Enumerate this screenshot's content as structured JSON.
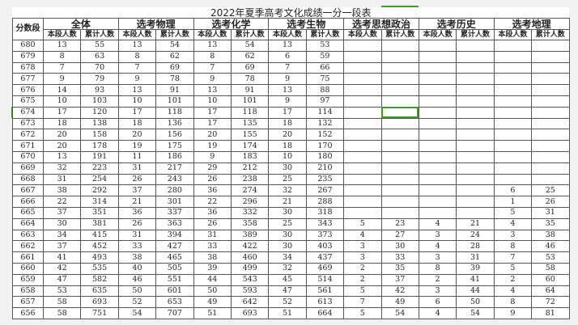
{
  "title": "2022年夏季高考文化成绩一分一段表",
  "score_header": "分数段",
  "groups": [
    "全体",
    "选考物理",
    "选考化学",
    "选考生物",
    "选考思想政治",
    "选考历史",
    "选考地理"
  ],
  "sub_headers": {
    "segment": "本段人数",
    "cumulative": "累计人数"
  },
  "selected_cell": {
    "row": "674",
    "column": "选考思想政治 累计人数"
  },
  "accent_color": "#3f9a2a",
  "rows": [
    [
      "680",
      "13",
      "55",
      "13",
      "54",
      "13",
      "54",
      "13",
      "53",
      "",
      "",
      "",
      "",
      "",
      ""
    ],
    [
      "679",
      "8",
      "63",
      "8",
      "62",
      "8",
      "62",
      "6",
      "59",
      "",
      "",
      "",
      "",
      "",
      ""
    ],
    [
      "678",
      "7",
      "70",
      "7",
      "69",
      "7",
      "69",
      "7",
      "66",
      "",
      "",
      "",
      "",
      "",
      ""
    ],
    [
      "677",
      "9",
      "79",
      "9",
      "78",
      "9",
      "78",
      "9",
      "75",
      "",
      "",
      "",
      "",
      "",
      ""
    ],
    [
      "676",
      "14",
      "93",
      "13",
      "91",
      "13",
      "91",
      "13",
      "88",
      "",
      "",
      "",
      "",
      "",
      ""
    ],
    [
      "675",
      "10",
      "103",
      "10",
      "101",
      "10",
      "101",
      "9",
      "97",
      "",
      "",
      "",
      "",
      "",
      ""
    ],
    [
      "674",
      "17",
      "120",
      "17",
      "118",
      "17",
      "118",
      "17",
      "114",
      "",
      "",
      "",
      "",
      "",
      ""
    ],
    [
      "673",
      "18",
      "138",
      "18",
      "136",
      "17",
      "135",
      "18",
      "132",
      "",
      "",
      "",
      "",
      "",
      ""
    ],
    [
      "672",
      "20",
      "158",
      "20",
      "156",
      "20",
      "155",
      "20",
      "152",
      "",
      "",
      "",
      "",
      "",
      ""
    ],
    [
      "671",
      "20",
      "178",
      "19",
      "175",
      "19",
      "174",
      "18",
      "170",
      "",
      "",
      "",
      "",
      "",
      ""
    ],
    [
      "670",
      "13",
      "191",
      "11",
      "186",
      "9",
      "183",
      "10",
      "180",
      "",
      "",
      "",
      "",
      "",
      ""
    ],
    [
      "669",
      "32",
      "223",
      "31",
      "217",
      "29",
      "212",
      "30",
      "210",
      "",
      "",
      "",
      "",
      "",
      ""
    ],
    [
      "668",
      "31",
      "254",
      "26",
      "243",
      "26",
      "238",
      "25",
      "235",
      "",
      "",
      "",
      "",
      "",
      ""
    ],
    [
      "667",
      "38",
      "292",
      "37",
      "280",
      "36",
      "274",
      "32",
      "267",
      "",
      "",
      "",
      "",
      "6",
      "25"
    ],
    [
      "666",
      "22",
      "314",
      "21",
      "301",
      "22",
      "296",
      "21",
      "288",
      "",
      "",
      "",
      "",
      "1",
      "26"
    ],
    [
      "665",
      "37",
      "351",
      "36",
      "337",
      "36",
      "332",
      "30",
      "318",
      "",
      "",
      "",
      "",
      "5",
      "31"
    ],
    [
      "664",
      "30",
      "381",
      "26",
      "363",
      "26",
      "358",
      "25",
      "343",
      "5",
      "23",
      "4",
      "21",
      "4",
      "35"
    ],
    [
      "663",
      "34",
      "415",
      "31",
      "394",
      "31",
      "389",
      "30",
      "373",
      "4",
      "27",
      "3",
      "24",
      "3",
      "38"
    ],
    [
      "662",
      "37",
      "452",
      "33",
      "427",
      "33",
      "422",
      "30",
      "403",
      "3",
      "30",
      "4",
      "28",
      "8",
      "46"
    ],
    [
      "661",
      "41",
      "493",
      "38",
      "465",
      "38",
      "460",
      "34",
      "437",
      "3",
      "33",
      "3",
      "31",
      "7",
      "53"
    ],
    [
      "660",
      "42",
      "535",
      "40",
      "505",
      "39",
      "499",
      "32",
      "469",
      "2",
      "35",
      "8",
      "39",
      "5",
      "58"
    ],
    [
      "659",
      "47",
      "582",
      "46",
      "551",
      "44",
      "543",
      "45",
      "514",
      "2",
      "37",
      "2",
      "41",
      "2",
      "60"
    ],
    [
      "658",
      "53",
      "635",
      "50",
      "601",
      "50",
      "593",
      "47",
      "561",
      "5",
      "42",
      "3",
      "44",
      "4",
      "64"
    ],
    [
      "657",
      "58",
      "693",
      "52",
      "653",
      "49",
      "642",
      "52",
      "613",
      "7",
      "49",
      "6",
      "50",
      "8",
      "72"
    ],
    [
      "656",
      "58",
      "751",
      "54",
      "707",
      "51",
      "693",
      "51",
      "664",
      "5",
      "54",
      "4",
      "54",
      "9",
      "81"
    ]
  ]
}
